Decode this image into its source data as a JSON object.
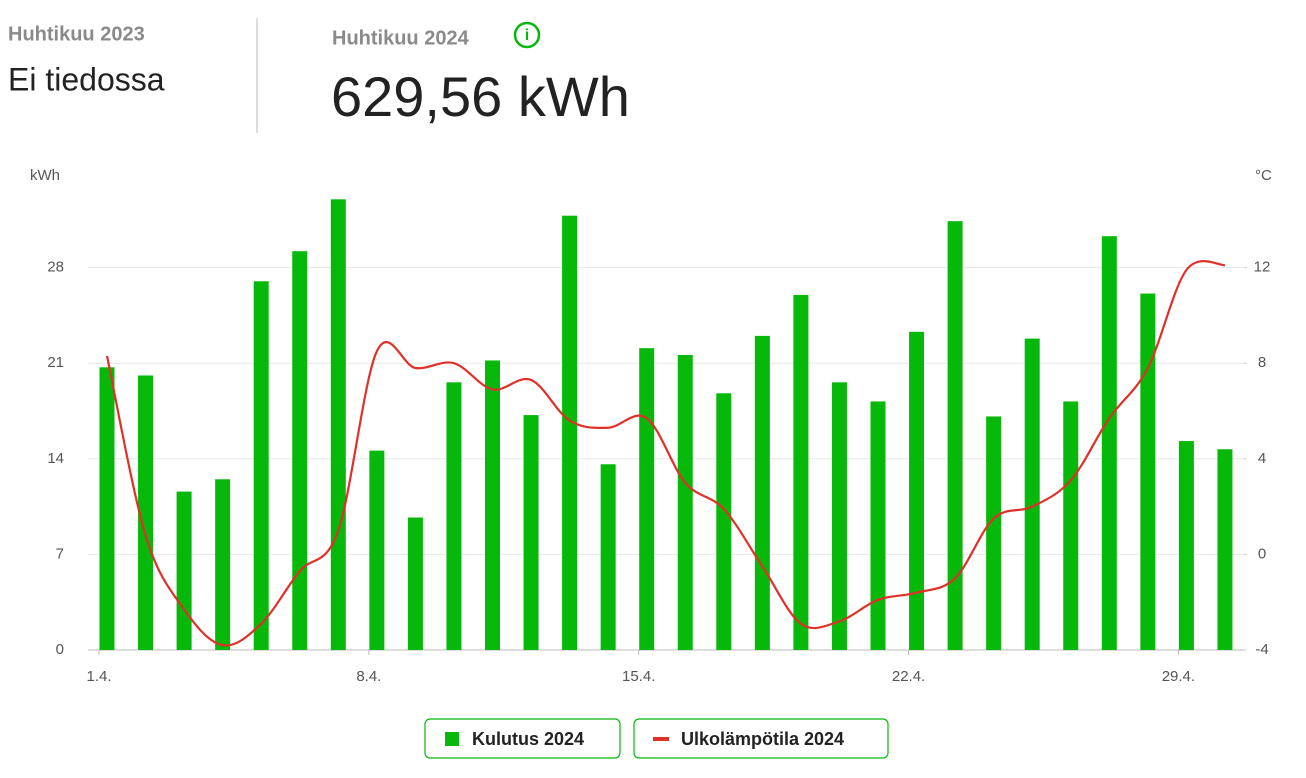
{
  "header": {
    "prev_label": "Huhtikuu 2023",
    "prev_value": "Ei tiedossa",
    "curr_label": "Huhtikuu 2024",
    "curr_value": "629,56 kWh",
    "info_icon": "i"
  },
  "chart_data": {
    "type": "bar",
    "y_label": "kWh",
    "y2_label": "°C",
    "categories": [
      "1.4.",
      null,
      null,
      null,
      null,
      null,
      null,
      "8.4.",
      null,
      null,
      null,
      null,
      null,
      null,
      "15.4.",
      null,
      null,
      null,
      null,
      null,
      null,
      "22.4.",
      null,
      null,
      null,
      null,
      null,
      null,
      "29.4.",
      null
    ],
    "series": [
      {
        "name": "Kulutus 2024",
        "type": "bar",
        "color": "#06b80a",
        "values": [
          20.7,
          20.1,
          11.6,
          12.5,
          27.0,
          29.2,
          33.0,
          14.6,
          9.7,
          19.6,
          21.2,
          17.2,
          31.8,
          13.6,
          22.1,
          21.6,
          18.8,
          23.0,
          26.0,
          19.6,
          18.2,
          23.3,
          31.4,
          17.1,
          22.8,
          18.2,
          30.3,
          26.1,
          15.3,
          14.7
        ]
      },
      {
        "name": "Ulkolämpötila 2024",
        "type": "line",
        "axis": "y2",
        "color": "#e0302a",
        "values": [
          8.3,
          0.8,
          -2.3,
          -3.8,
          -2.9,
          -0.7,
          1.0,
          8.5,
          7.8,
          8.0,
          6.9,
          7.3,
          5.6,
          5.3,
          5.7,
          3.0,
          1.9,
          -0.5,
          -2.9,
          -2.8,
          -1.9,
          -1.6,
          -1.0,
          1.5,
          2.0,
          3.1,
          5.7,
          7.8,
          11.9,
          12.1
        ]
      }
    ],
    "ylim": [
      0,
      35
    ],
    "yticks": [
      0,
      7,
      14,
      21,
      28
    ],
    "y2lim": [
      -4,
      16
    ],
    "y2ticks": [
      -4,
      0,
      4,
      8,
      12
    ],
    "grid": true,
    "legend": "bottom"
  }
}
